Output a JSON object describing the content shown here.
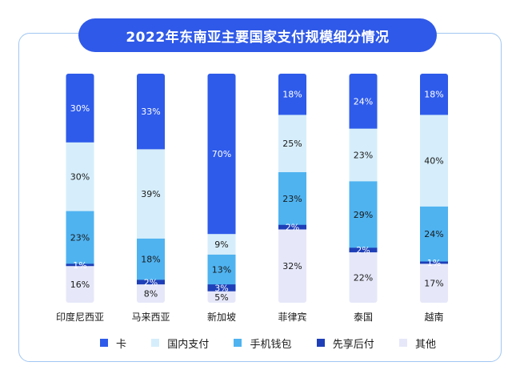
{
  "title": "2022年东南亚主要国家支付规模细分情况",
  "chart_data": {
    "type": "bar",
    "stacked": true,
    "title": "2022年东南亚主要国家支付规模细分情况",
    "categories": [
      "印度尼西亚",
      "马来西亚",
      "新加坡",
      "菲律宾",
      "泰国",
      "越南"
    ],
    "series": [
      {
        "name": "卡",
        "color": "#2e5bea",
        "values": [
          30,
          33,
          70,
          18,
          24,
          18
        ]
      },
      {
        "name": "国内支付",
        "color": "#d6eefb",
        "values": [
          30,
          39,
          9,
          25,
          23,
          40
        ]
      },
      {
        "name": "手机钱包",
        "color": "#4fb3f0",
        "values": [
          23,
          18,
          13,
          23,
          29,
          24
        ]
      },
      {
        "name": "先享后付",
        "color": "#1e3fb8",
        "values": [
          1,
          2,
          3,
          2,
          2,
          1
        ]
      },
      {
        "name": "其他",
        "color": "#e6e8f9",
        "values": [
          16,
          8,
          5,
          32,
          22,
          17
        ]
      }
    ],
    "value_suffix": "%",
    "ylim": [
      0,
      100
    ],
    "legend_position": "bottom",
    "grid": false
  }
}
